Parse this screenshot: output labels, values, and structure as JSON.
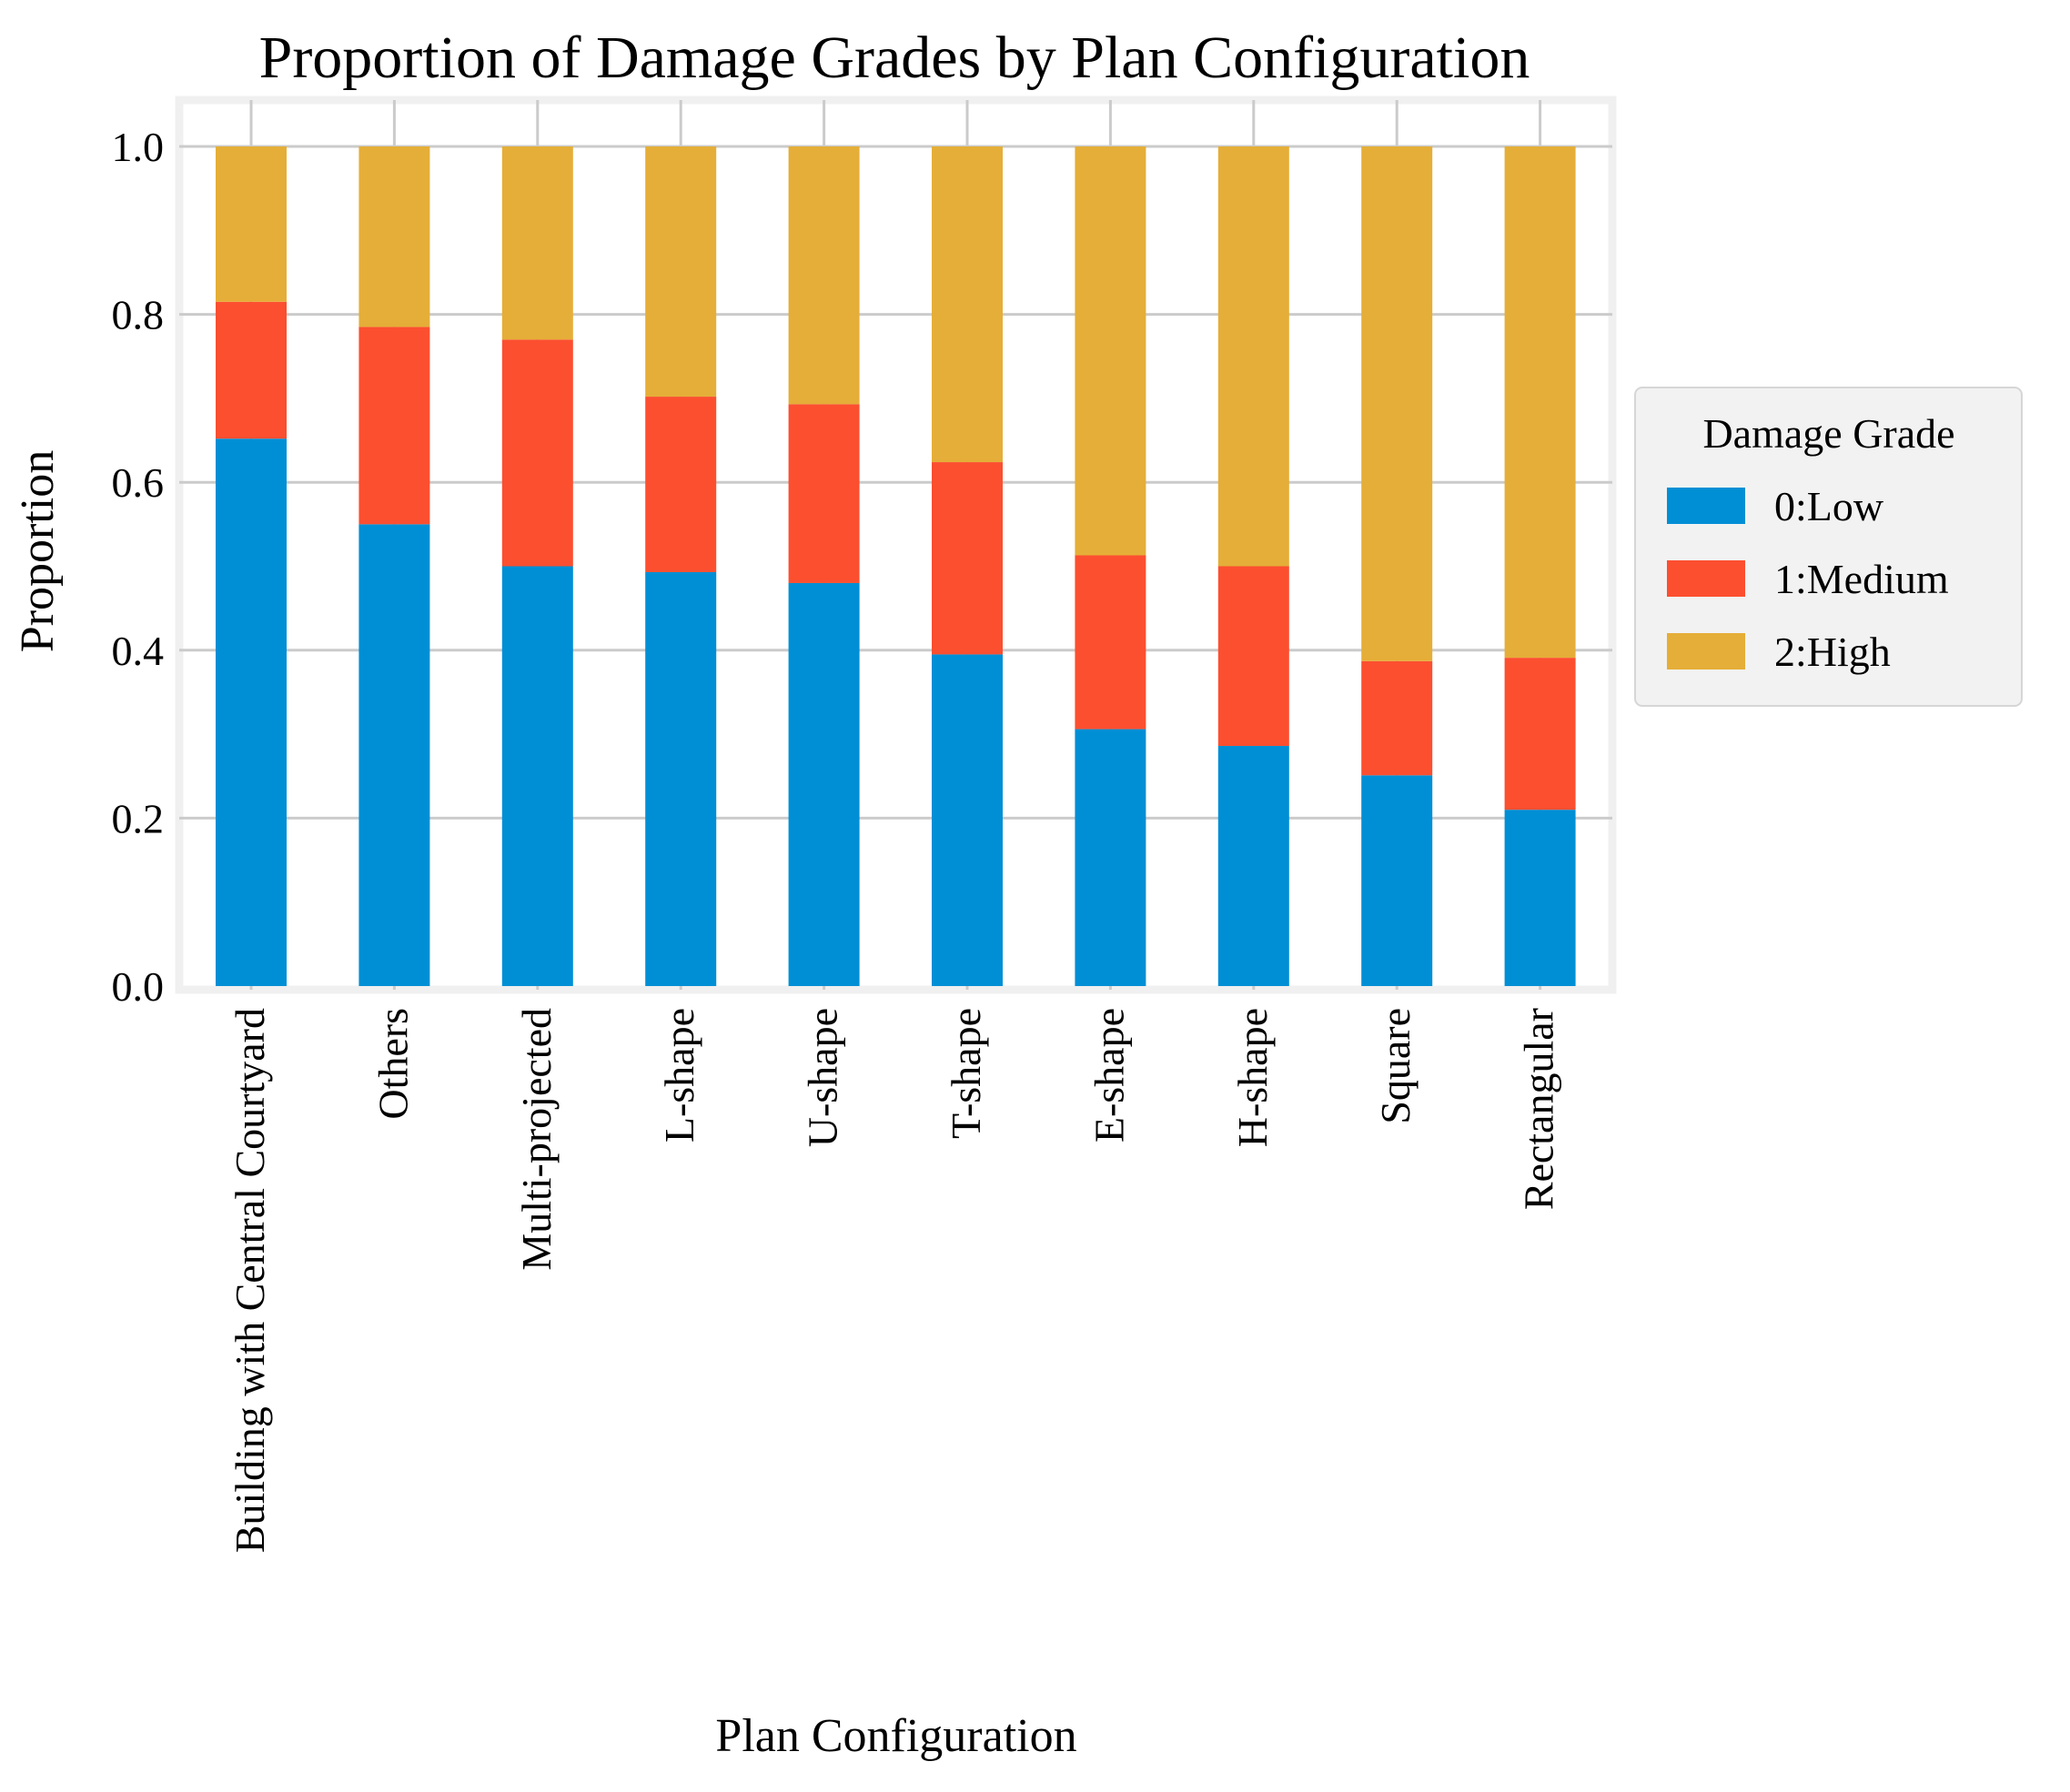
{
  "chart_data": {
    "type": "bar",
    "stacked": true,
    "title": "Proportion of Damage Grades by Plan Configuration",
    "xlabel": "Plan Configuration",
    "ylabel": "Proportion",
    "ylim": [
      0,
      1.0
    ],
    "yticks": [
      "0.0",
      "0.2",
      "0.4",
      "0.6",
      "0.8",
      "1.0"
    ],
    "grid": true,
    "categories": [
      "Building with Central Courtyard",
      "Others",
      "Multi-projected",
      "L-shape",
      "U-shape",
      "T-shape",
      "E-shape",
      "H-shape",
      "Square",
      "Rectangular"
    ],
    "series": [
      {
        "name": "0:Low",
        "color": "#008fd5",
        "values": [
          0.652,
          0.55,
          0.5,
          0.493,
          0.48,
          0.395,
          0.306,
          0.286,
          0.251,
          0.21
        ]
      },
      {
        "name": "1:Medium",
        "color": "#fc4f30",
        "values": [
          0.163,
          0.235,
          0.27,
          0.209,
          0.213,
          0.229,
          0.207,
          0.214,
          0.136,
          0.181
        ]
      },
      {
        "name": "2:High",
        "color": "#e5ae38",
        "values": [
          0.185,
          0.215,
          0.23,
          0.298,
          0.307,
          0.376,
          0.487,
          0.5,
          0.613,
          0.609
        ]
      }
    ],
    "legend": {
      "title": "Damage Grade",
      "position": "center-right"
    }
  }
}
